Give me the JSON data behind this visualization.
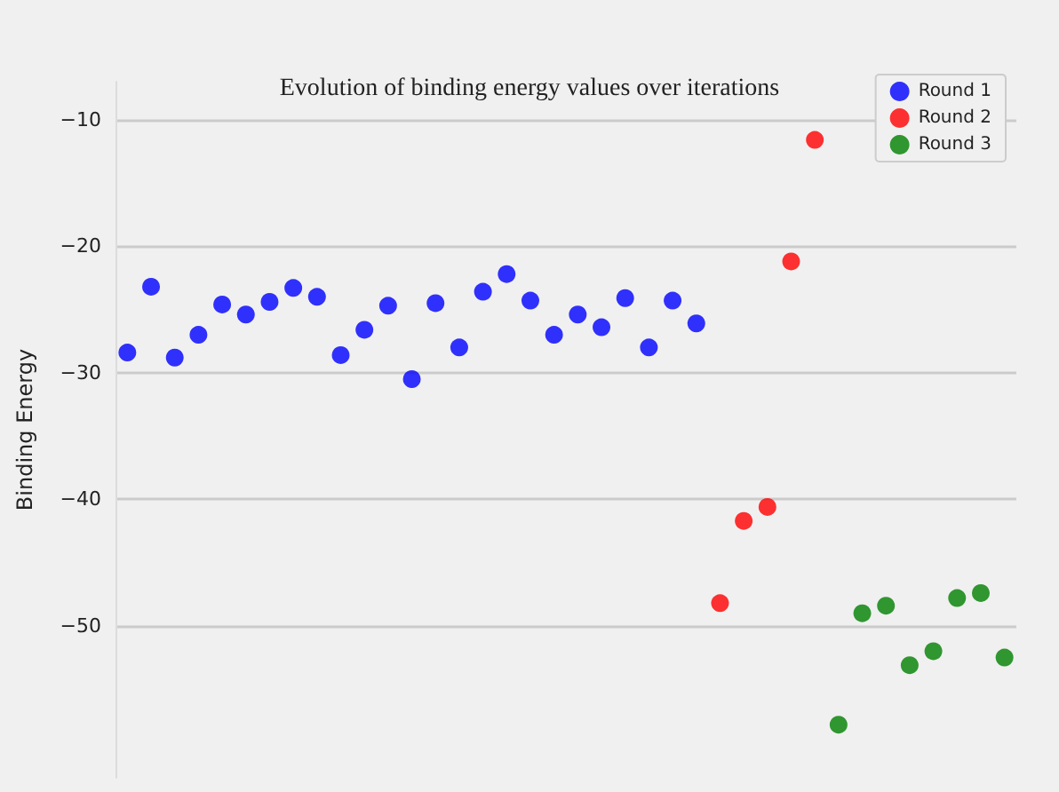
{
  "chart_data": {
    "type": "scatter",
    "title": "Evolution of binding energy values over iterations",
    "ylabel": "Binding Energy",
    "categories": [
      null,
      null,
      null,
      null,
      null,
      null,
      null,
      null,
      null,
      null,
      null,
      null,
      null,
      null,
      null,
      null,
      null,
      null,
      null,
      null,
      null,
      null,
      null,
      null,
      null,
      null,
      null,
      null,
      null,
      null,
      null,
      null,
      null,
      null,
      null,
      null,
      null,
      null
    ],
    "series": [
      {
        "name": "Round 1",
        "color": "#0000ff",
        "values": [
          -28.4,
          -23.2,
          -28.8,
          -27.0,
          -24.6,
          -25.4,
          -24.4,
          -23.3,
          -24.0,
          -28.6,
          -26.6,
          -24.7,
          -30.5,
          -24.5,
          -28.0,
          -23.6,
          -22.2,
          -24.3,
          -27.0,
          -25.4,
          -26.4,
          -24.1,
          -28.0,
          -24.3,
          -26.1,
          null,
          null,
          null,
          null,
          null,
          null,
          null,
          null,
          null,
          null,
          null,
          null,
          null
        ]
      },
      {
        "name": "Round 2",
        "color": "#ff0000",
        "values": [
          null,
          null,
          null,
          null,
          null,
          null,
          null,
          null,
          null,
          null,
          null,
          null,
          null,
          null,
          null,
          null,
          null,
          null,
          null,
          null,
          null,
          null,
          null,
          null,
          null,
          -48.2,
          -41.7,
          -40.6,
          -21.2,
          -11.6,
          null,
          null,
          null,
          null,
          null,
          null,
          null,
          null
        ]
      },
      {
        "name": "Round 3",
        "color": "#008000",
        "values": [
          null,
          null,
          null,
          null,
          null,
          null,
          null,
          null,
          null,
          null,
          null,
          null,
          null,
          null,
          null,
          null,
          null,
          null,
          null,
          null,
          null,
          null,
          null,
          null,
          null,
          null,
          null,
          null,
          null,
          null,
          -57.8,
          -49.0,
          -48.4,
          -53.1,
          -52.0,
          -47.8,
          -47.4,
          -52.5
        ]
      }
    ],
    "ylim": [
      -62,
      -7
    ],
    "yticks": [
      -10,
      -20,
      -30,
      -40,
      -50
    ],
    "grid": "y",
    "legend": "top right",
    "marker": "circle",
    "tick_labels": "y"
  }
}
